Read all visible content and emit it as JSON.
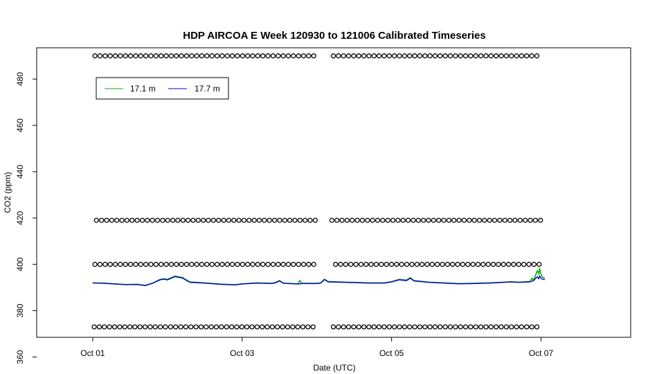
{
  "chart_data": {
    "type": "line",
    "title": "HDP AIRCOA E  Week 120930 to 121006  Calibrated Timeseries",
    "xlabel": "Date (UTC)",
    "ylabel": "CO2 (ppm)",
    "xlim": [
      -0.75,
      7.2
    ],
    "ylim": [
      368.5,
      493.5
    ],
    "x_unit": "days since Oct 01 00:00 UTC",
    "x_ticks": [
      {
        "x": 0,
        "label": "Oct 01"
      },
      {
        "x": 2,
        "label": "Oct 03"
      },
      {
        "x": 4,
        "label": "Oct 05"
      },
      {
        "x": 6,
        "label": "Oct 07"
      }
    ],
    "y_ticks": [
      360,
      380,
      400,
      420,
      440,
      460,
      480
    ],
    "grid": false,
    "legend": {
      "position": "top-left",
      "entries": [
        {
          "label": "17.1 m",
          "color": "#00b000"
        },
        {
          "label": "17.7 m",
          "color": "#0000cc"
        }
      ]
    },
    "series": [
      {
        "name": "17.1 m",
        "color": "#00b000",
        "points": [
          [
            0.0,
            392.0
          ],
          [
            0.15,
            391.9
          ],
          [
            0.3,
            391.6
          ],
          [
            0.45,
            391.3
          ],
          [
            0.6,
            391.4
          ],
          [
            0.7,
            390.9
          ],
          [
            0.8,
            391.9
          ],
          [
            0.9,
            393.5
          ],
          [
            0.95,
            393.8
          ],
          [
            1.0,
            393.5
          ],
          [
            1.05,
            394.2
          ],
          [
            1.1,
            394.9
          ],
          [
            1.2,
            394.3
          ],
          [
            1.3,
            392.4
          ],
          [
            1.5,
            392.0
          ],
          [
            1.7,
            391.5
          ],
          [
            1.9,
            391.2
          ],
          [
            2.0,
            391.6
          ],
          [
            2.2,
            392.0
          ],
          [
            2.4,
            391.8
          ],
          [
            2.45,
            392.2
          ],
          [
            2.5,
            393.0
          ],
          [
            2.55,
            391.9
          ],
          [
            2.75,
            391.6
          ],
          [
            2.77,
            393.0
          ],
          [
            2.8,
            391.8
          ],
          [
            3.0,
            391.8
          ],
          [
            3.05,
            392.0
          ],
          [
            3.1,
            393.6
          ],
          [
            3.15,
            392.6
          ],
          [
            3.3,
            392.4
          ],
          [
            3.5,
            392.2
          ],
          [
            3.7,
            392.0
          ],
          [
            3.9,
            392.0
          ],
          [
            4.0,
            392.5
          ],
          [
            4.1,
            393.5
          ],
          [
            4.2,
            393.2
          ],
          [
            4.25,
            394.2
          ],
          [
            4.3,
            393.0
          ],
          [
            4.5,
            392.3
          ],
          [
            4.7,
            392.0
          ],
          [
            4.9,
            391.7
          ],
          [
            5.1,
            391.8
          ],
          [
            5.3,
            392.0
          ],
          [
            5.5,
            392.3
          ],
          [
            5.6,
            392.5
          ],
          [
            5.7,
            392.3
          ],
          [
            5.85,
            392.6
          ],
          [
            5.88,
            394.0
          ],
          [
            5.9,
            393.2
          ],
          [
            5.93,
            395.5
          ],
          [
            5.95,
            397.2
          ],
          [
            5.97,
            396.0
          ],
          [
            5.98,
            398.3
          ],
          [
            6.0,
            395.6
          ],
          [
            6.02,
            394.5
          ],
          [
            6.05,
            394.0
          ]
        ]
      },
      {
        "name": "17.7 m",
        "color": "#0000cc",
        "points": [
          [
            0.0,
            392.0
          ],
          [
            0.15,
            391.8
          ],
          [
            0.3,
            391.5
          ],
          [
            0.45,
            391.2
          ],
          [
            0.6,
            391.3
          ],
          [
            0.7,
            390.8
          ],
          [
            0.8,
            391.8
          ],
          [
            0.9,
            393.3
          ],
          [
            0.95,
            393.6
          ],
          [
            1.0,
            393.3
          ],
          [
            1.05,
            394.0
          ],
          [
            1.1,
            394.7
          ],
          [
            1.2,
            394.1
          ],
          [
            1.3,
            392.2
          ],
          [
            1.5,
            391.9
          ],
          [
            1.7,
            391.4
          ],
          [
            1.9,
            391.1
          ],
          [
            2.0,
            391.5
          ],
          [
            2.2,
            391.9
          ],
          [
            2.4,
            391.7
          ],
          [
            2.45,
            392.1
          ],
          [
            2.5,
            392.8
          ],
          [
            2.55,
            391.8
          ],
          [
            2.75,
            391.5
          ],
          [
            2.8,
            391.7
          ],
          [
            3.0,
            391.7
          ],
          [
            3.05,
            391.9
          ],
          [
            3.1,
            393.4
          ],
          [
            3.15,
            392.4
          ],
          [
            3.3,
            392.3
          ],
          [
            3.5,
            392.1
          ],
          [
            3.7,
            391.9
          ],
          [
            3.9,
            391.9
          ],
          [
            4.0,
            392.4
          ],
          [
            4.1,
            393.3
          ],
          [
            4.2,
            393.0
          ],
          [
            4.25,
            394.0
          ],
          [
            4.3,
            392.8
          ],
          [
            4.5,
            392.2
          ],
          [
            4.7,
            391.9
          ],
          [
            4.9,
            391.6
          ],
          [
            5.1,
            391.7
          ],
          [
            5.3,
            391.9
          ],
          [
            5.5,
            392.2
          ],
          [
            5.6,
            392.4
          ],
          [
            5.7,
            392.2
          ],
          [
            5.85,
            392.4
          ],
          [
            5.9,
            393.0
          ],
          [
            5.93,
            394.0
          ],
          [
            5.95,
            394.6
          ],
          [
            5.97,
            393.8
          ],
          [
            5.98,
            395.0
          ],
          [
            6.0,
            394.0
          ],
          [
            6.02,
            393.6
          ],
          [
            6.05,
            393.4
          ]
        ]
      },
      {
        "name": "calibration markers",
        "style": "points",
        "rows": [
          {
            "y": 490,
            "segments": [
              [
                0.03,
                3.02
              ],
              [
                3.22,
                6.0
              ]
            ]
          },
          {
            "y": 419,
            "segments": [
              [
                0.05,
                3.0
              ],
              [
                3.2,
                6.0
              ]
            ]
          },
          {
            "y": 400,
            "segments": [
              [
                0.03,
                3.02
              ],
              [
                3.25,
                6.0
              ]
            ]
          },
          {
            "y": 373,
            "segments": [
              [
                0.02,
                3.0
              ],
              [
                3.22,
                6.0
              ]
            ]
          }
        ]
      }
    ]
  }
}
